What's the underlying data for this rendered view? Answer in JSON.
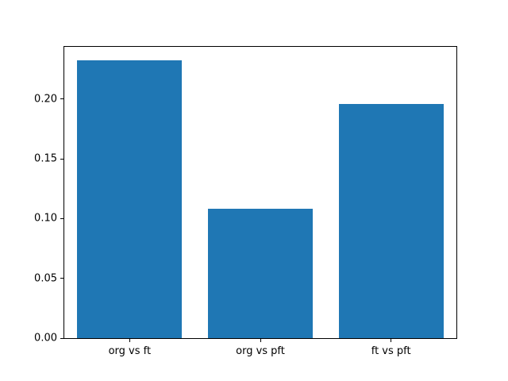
{
  "chart_data": {
    "type": "bar",
    "categories": [
      "org vs ft",
      "org vs pft",
      "ft vs pft"
    ],
    "values": [
      0.232,
      0.108,
      0.196
    ],
    "title": "",
    "xlabel": "",
    "ylabel": "",
    "ylim": [
      0,
      0.2436
    ],
    "yticks": [
      0.0,
      0.05,
      0.1,
      0.15,
      0.2
    ],
    "ytick_labels": [
      "0.00",
      "0.05",
      "0.10",
      "0.15",
      "0.20"
    ],
    "bar_color": "#1f77b4",
    "bar_width_fraction": 0.8,
    "grid": false,
    "legend_position": "none"
  }
}
